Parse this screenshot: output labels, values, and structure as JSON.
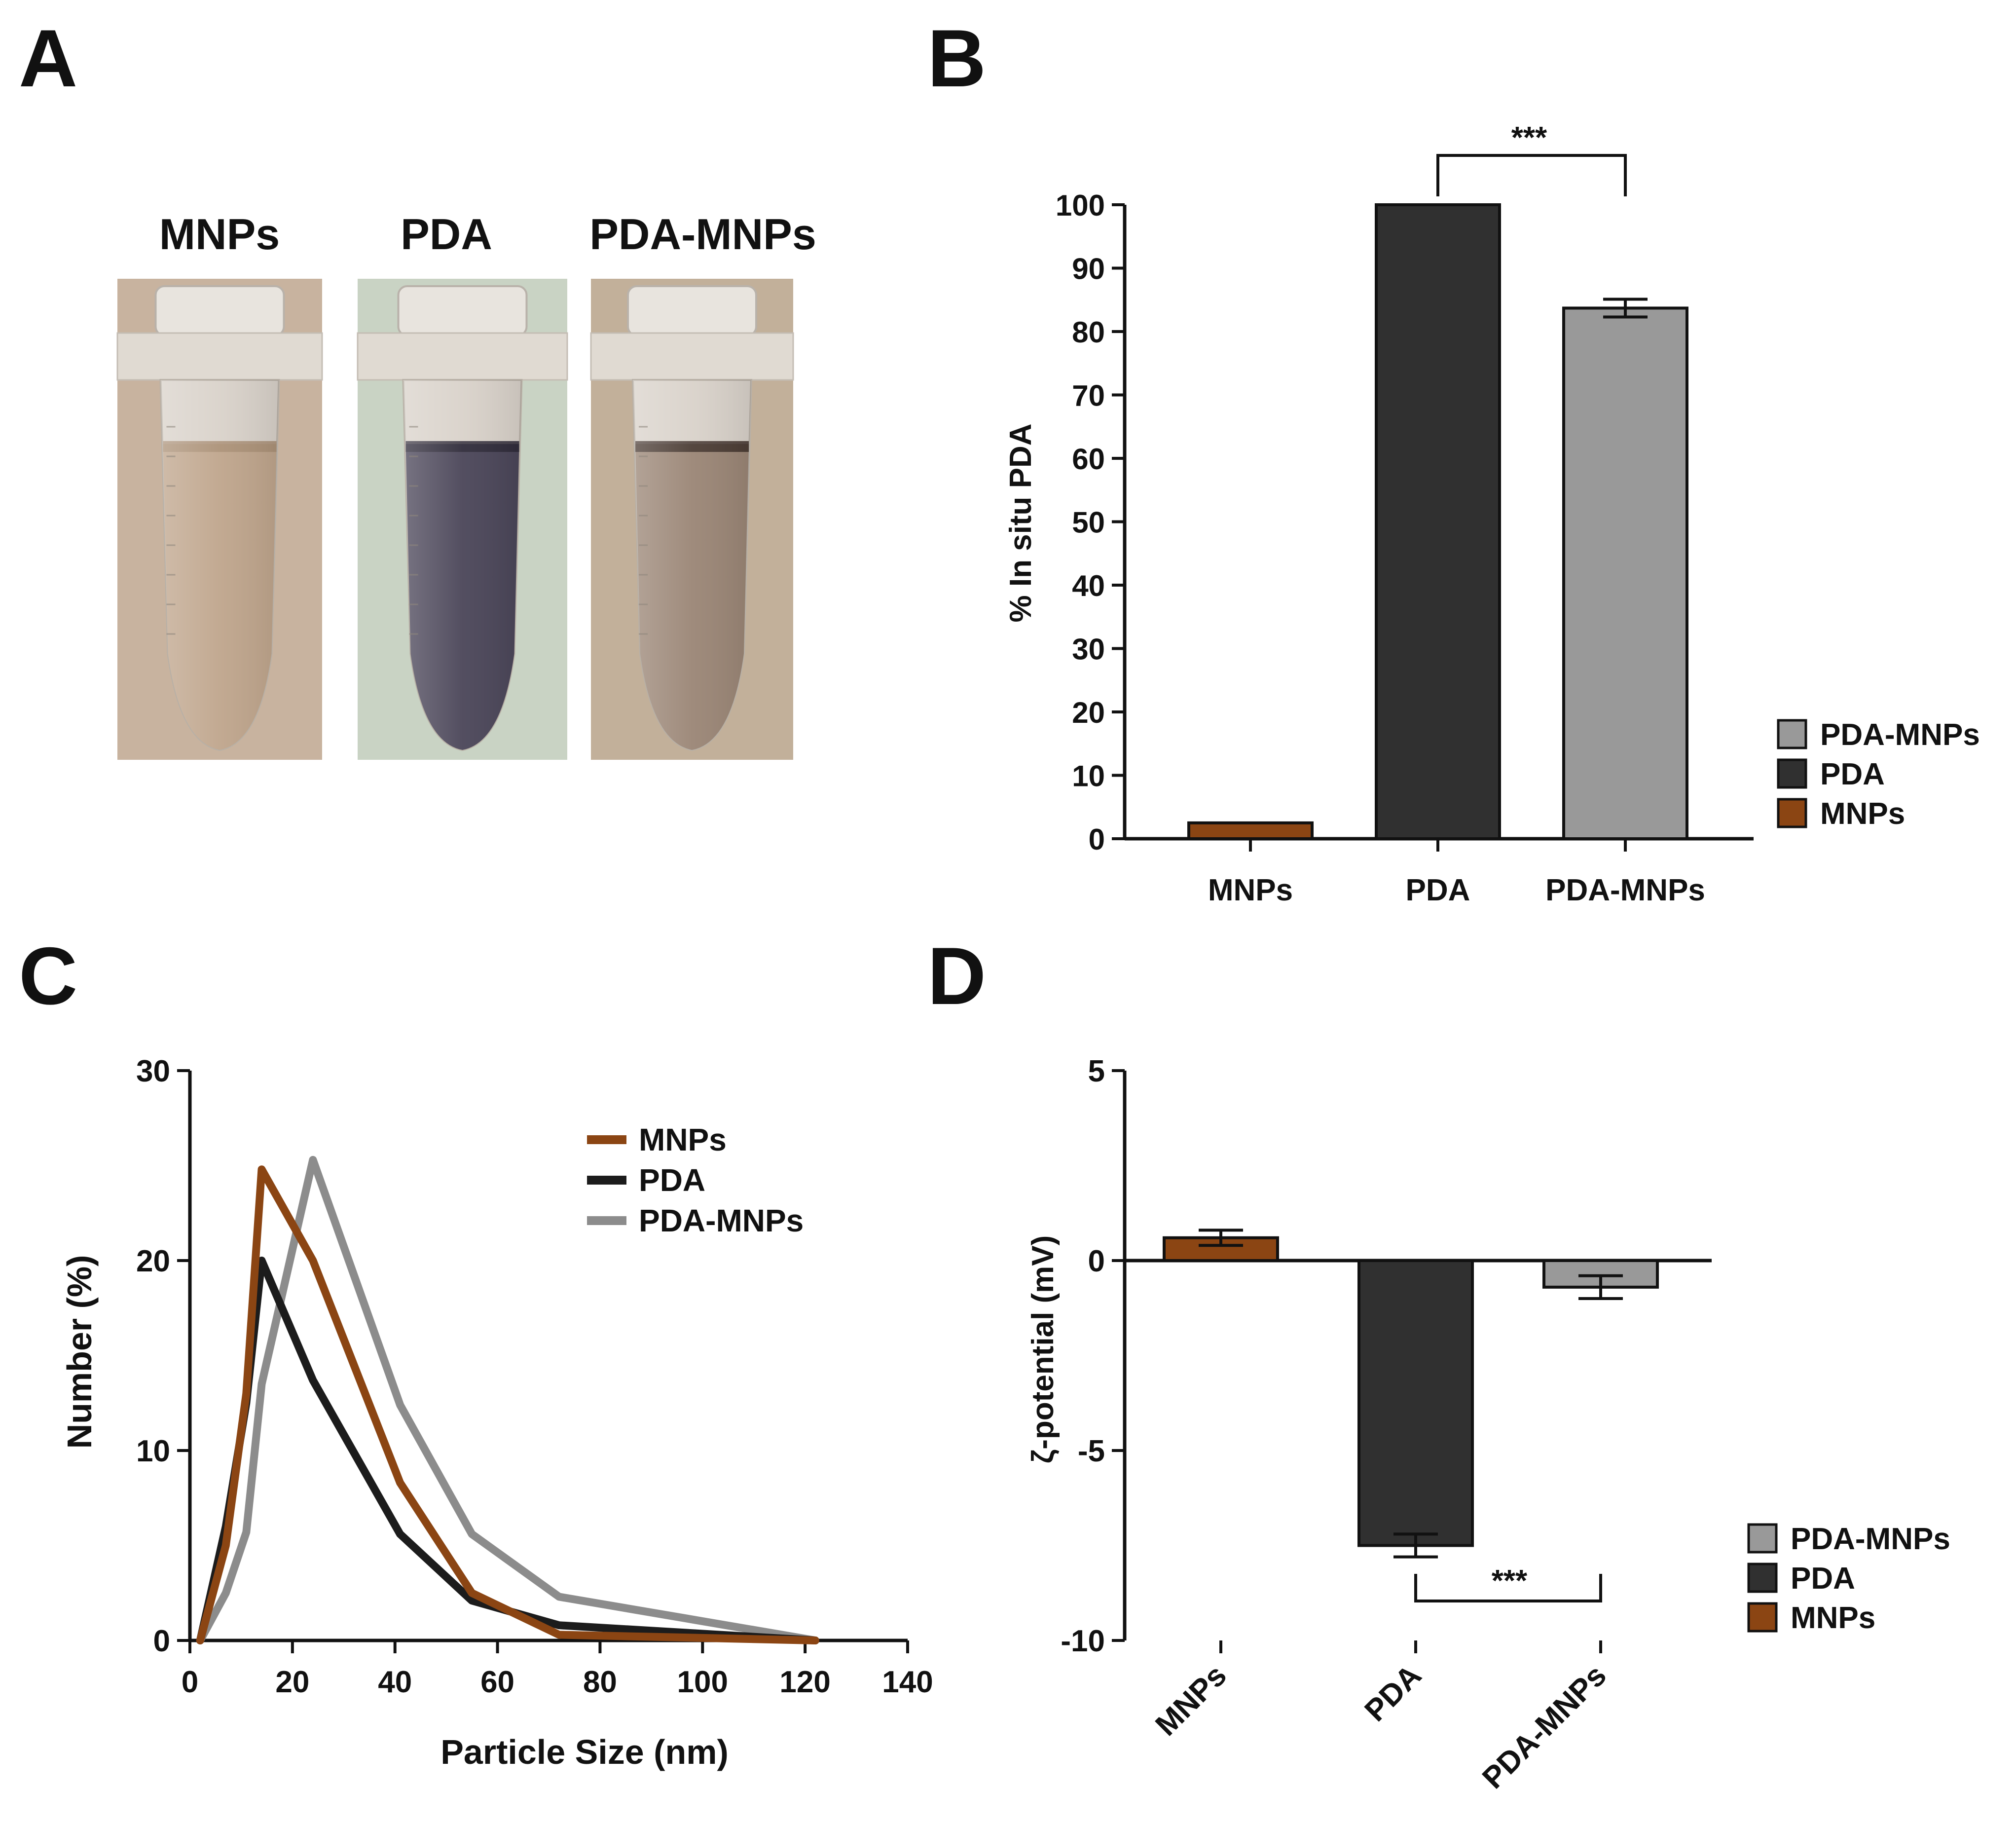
{
  "panels": {
    "A": {
      "letter": "A",
      "tube_labels": [
        "MNPs",
        "PDA",
        "PDA-MNPs"
      ],
      "tube_colors": {
        "MNPs": {
          "background": "#c8b39f",
          "liquid": "#bfa58c",
          "liquid_top": "#a88e74"
        },
        "PDA": {
          "background": "#c9d3c4",
          "liquid": "#4a4558",
          "liquid_top": "#2b2836"
        },
        "PDA-MNPs": {
          "background": "#c2b09a",
          "liquid": "#9a8575",
          "liquid_top": "#3e302a"
        }
      }
    },
    "B": {
      "letter": "B",
      "significance": "***"
    },
    "C": {
      "letter": "C"
    },
    "D": {
      "letter": "D",
      "significance": "***"
    }
  },
  "colors": {
    "MNPs": "#8b4513",
    "PDA": "#303030",
    "PDA-MNPs": "#999999",
    "line_PDA": "#1c1c1c",
    "line_PDA-MNPs": "#8c8c8c"
  },
  "chart_data": [
    {
      "panel": "B",
      "type": "bar",
      "categories": [
        "MNPs",
        "PDA",
        "PDA-MNPs"
      ],
      "values": [
        2.5,
        100,
        83.7
      ],
      "errors": [
        0,
        0,
        1.4
      ],
      "ylabel": "% In situ PDA",
      "xlabel": "",
      "ylim": [
        0,
        100
      ],
      "yticks": [
        0,
        10,
        20,
        30,
        40,
        50,
        60,
        70,
        80,
        90,
        100
      ],
      "legend": [
        "PDA-MNPs",
        "PDA",
        "MNPs"
      ],
      "legend_position": "right",
      "annotation": {
        "text": "***",
        "between": [
          "PDA",
          "PDA-MNPs"
        ]
      }
    },
    {
      "panel": "C",
      "type": "line",
      "xlabel": "Particle Size (nm)",
      "ylabel": "Number (%)",
      "xlim": [
        0,
        140
      ],
      "ylim": [
        0,
        30
      ],
      "xticks": [
        0,
        20,
        40,
        60,
        80,
        100,
        120,
        140
      ],
      "yticks": [
        0,
        10,
        20,
        30
      ],
      "legend_position": "top-right",
      "series": [
        {
          "name": "MNPs",
          "x": [
            2,
            7,
            11,
            14,
            24,
            41,
            55,
            72,
            122
          ],
          "y": [
            0,
            5,
            13,
            24.8,
            20,
            8.3,
            2.5,
            0.3,
            0
          ]
        },
        {
          "name": "PDA",
          "x": [
            2,
            7,
            11,
            14,
            24,
            41,
            55,
            72,
            122
          ],
          "y": [
            0,
            6,
            12.5,
            20,
            13.7,
            5.6,
            2.1,
            0.8,
            0
          ]
        },
        {
          "name": "PDA-MNPs",
          "x": [
            2,
            7,
            11,
            14,
            24,
            41,
            55,
            72,
            122
          ],
          "y": [
            0,
            2.5,
            5.7,
            13.5,
            25.3,
            12.4,
            5.6,
            2.3,
            0
          ]
        }
      ]
    },
    {
      "panel": "D",
      "type": "bar",
      "categories": [
        "MNPs",
        "PDA",
        "PDA-MNPs"
      ],
      "values": [
        0.6,
        -7.5,
        -0.7
      ],
      "errors": [
        0.2,
        0.3,
        0.3
      ],
      "ylabel": "ζ-potential (mV)",
      "xlabel": "",
      "ylim": [
        -10,
        5
      ],
      "yticks": [
        -10,
        -5,
        0,
        5
      ],
      "legend": [
        "PDA-MNPs",
        "PDA",
        "MNPs"
      ],
      "legend_position": "right",
      "annotation": {
        "text": "***",
        "between": [
          "PDA",
          "PDA-MNPs"
        ]
      }
    }
  ]
}
